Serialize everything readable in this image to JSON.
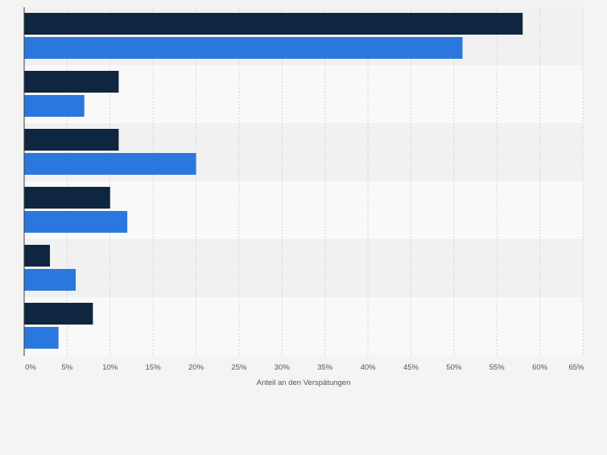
{
  "chart_data": {
    "type": "bar",
    "orientation": "horizontal",
    "title": "",
    "xlabel": "Anteil an den Verspätungen",
    "ylabel": "",
    "xlim": [
      0,
      65
    ],
    "x_ticks": [
      0,
      5,
      10,
      15,
      20,
      25,
      30,
      35,
      40,
      45,
      50,
      55,
      60,
      65
    ],
    "tick_suffix": "%",
    "grid": true,
    "legend": "none",
    "categories": [
      "",
      "",
      "",
      "",
      "",
      ""
    ],
    "series": [
      {
        "name": "",
        "color": "#0f2640",
        "values": [
          58,
          11,
          11,
          10,
          3,
          8
        ]
      },
      {
        "name": "",
        "color": "#2a78dd",
        "values": [
          51,
          7,
          20,
          12,
          6,
          4
        ]
      }
    ]
  }
}
